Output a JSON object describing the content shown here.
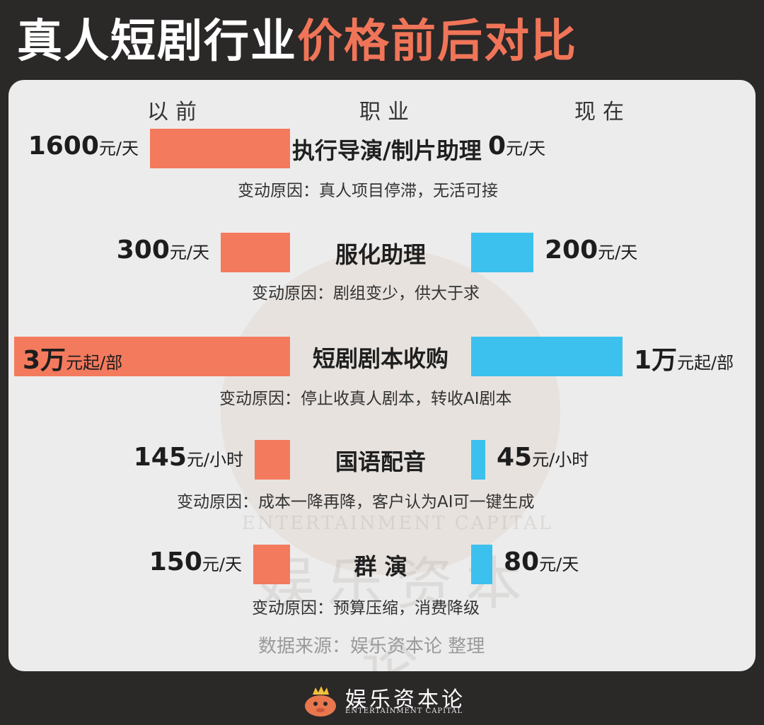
{
  "title": {
    "part1": "真人短剧行业",
    "part2": "价格前后对比"
  },
  "headers": {
    "before": "以前",
    "job": "职业",
    "after": "现在"
  },
  "chart_data": {
    "type": "bar",
    "categories": [
      "执行导演/制片助理",
      "服化助理",
      "短剧剧本收购",
      "国语配音",
      "群 演"
    ],
    "series": [
      {
        "name": "以前",
        "values": [
          1600,
          300,
          30000,
          145,
          150
        ]
      },
      {
        "name": "现在",
        "values": [
          0,
          200,
          10000,
          45,
          80
        ]
      }
    ],
    "value_labels_before": [
      {
        "num": "1600",
        "unit": "元/天"
      },
      {
        "num": "300",
        "unit": "元/天"
      },
      {
        "num": "3万",
        "unit": "元起/部"
      },
      {
        "num": "145",
        "unit": "元/小时"
      },
      {
        "num": "150",
        "unit": "元/天"
      }
    ],
    "value_labels_after": [
      {
        "num": "0",
        "unit": "元/天"
      },
      {
        "num": "200",
        "unit": "元/天"
      },
      {
        "num": "1万",
        "unit": "元起/部"
      },
      {
        "num": "45",
        "unit": "元/小时"
      },
      {
        "num": "80",
        "unit": "元/天"
      }
    ],
    "reasons": [
      "变动原因：真人项目停滞，无活可接",
      "变动原因：剧组变少，供大于求",
      "变动原因：停止收真人剧本，转收AI剧本",
      "变动原因：成本一降再降，客户认为AI可一键生成",
      "变动原因：预算压缩，消费降级"
    ],
    "colors": {
      "before": "#f47a5e",
      "after": "#3cc1ee"
    }
  },
  "source": "数据来源：娱乐资本论 整理",
  "watermark": {
    "en": "ENTERTAINMENT CAPITAL",
    "cn": "娱乐资本论"
  },
  "footer": {
    "logo_cn": "娱乐资本论",
    "logo_en": "ENTERTAINMENT CAPITAL"
  }
}
